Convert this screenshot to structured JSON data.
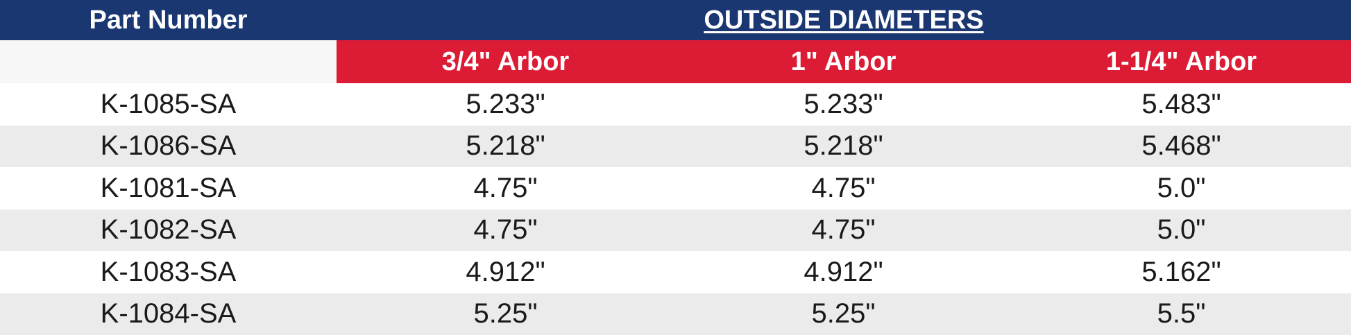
{
  "header": {
    "part_number": "Part Number",
    "outside_diameters": "OUTSIDE DIAMETERS"
  },
  "arbors": [
    "3/4\" Arbor",
    "1\" Arbor",
    "1-1/4\" Arbor"
  ],
  "rows": [
    {
      "part": "K-1085-SA",
      "values": [
        "5.233\"",
        "5.233\"",
        "5.483\""
      ]
    },
    {
      "part": "K-1086-SA",
      "values": [
        "5.218\"",
        "5.218\"",
        "5.468\""
      ]
    },
    {
      "part": "K-1081-SA",
      "values": [
        "4.75\"",
        "4.75\"",
        "5.0\""
      ]
    },
    {
      "part": "K-1082-SA",
      "values": [
        "4.75\"",
        "4.75\"",
        "5.0\""
      ]
    },
    {
      "part": "K-1083-SA",
      "values": [
        "4.912\"",
        "4.912\"",
        "5.162\""
      ]
    },
    {
      "part": "K-1084-SA",
      "values": [
        "5.25\"",
        "5.25\"",
        "5.5\""
      ]
    }
  ],
  "colors": {
    "header_blue": "#1b3772",
    "subheader_red": "#dc1c35",
    "row_stripe": "#ebebeb"
  }
}
